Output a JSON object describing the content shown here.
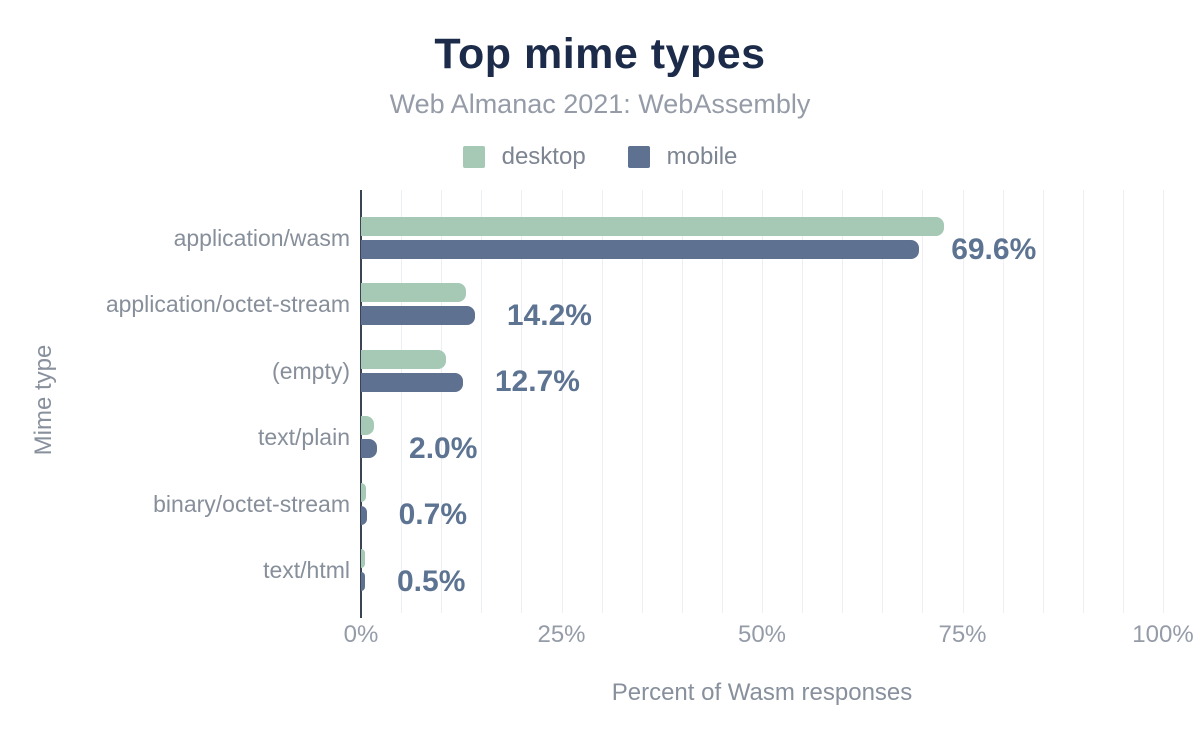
{
  "header": {
    "title": "Top mime types",
    "subtitle": "Web Almanac 2021: WebAssembly"
  },
  "legend": {
    "items": [
      {
        "label": "desktop",
        "color": "#a5c9b5"
      },
      {
        "label": "mobile",
        "color": "#5f7190"
      }
    ]
  },
  "chart_data": {
    "type": "bar",
    "orientation": "horizontal",
    "title": "Top mime types",
    "subtitle": "Web Almanac 2021: WebAssembly",
    "categories": [
      "application/wasm",
      "application/octet-stream",
      "(empty)",
      "text/plain",
      "binary/octet-stream",
      "text/html"
    ],
    "series": [
      {
        "name": "desktop",
        "color": "#a5c9b5",
        "values": [
          72.7,
          13.1,
          10.6,
          1.6,
          0.6,
          0.5
        ]
      },
      {
        "name": "mobile",
        "color": "#5f7190",
        "values": [
          69.6,
          14.2,
          12.7,
          2.0,
          0.7,
          0.5
        ]
      }
    ],
    "value_labels": [
      "69.6%",
      "14.2%",
      "12.7%",
      "2.0%",
      "0.7%",
      "0.5%"
    ],
    "value_labels_series": "mobile",
    "xlabel": "Percent of Wasm responses",
    "ylabel": "Mime type",
    "xlim": [
      0,
      100
    ],
    "x_ticks": [
      {
        "value": 0,
        "label": "0%"
      },
      {
        "value": 25,
        "label": "25%"
      },
      {
        "value": 50,
        "label": "50%"
      },
      {
        "value": 75,
        "label": "75%"
      },
      {
        "value": 100,
        "label": "100%"
      }
    ],
    "gridline_step": 5,
    "grid": true,
    "legend_position": "top"
  },
  "colors": {
    "title": "#1c2b4a",
    "subtitle": "#959ca8",
    "category_label": "#878f9b",
    "value_label": "#5d7392",
    "axis_line": "#3a4452",
    "gridline": "#edeff3",
    "desktop": "#a5c9b5",
    "mobile": "#5f7190"
  }
}
